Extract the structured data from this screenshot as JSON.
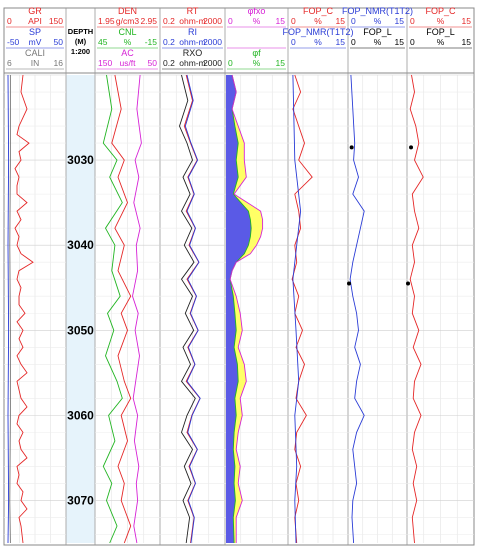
{
  "chart_data": {
    "type": "well-log",
    "depth": {
      "title": "DEPTH",
      "unit": "(M)",
      "scale": "1:200",
      "range": [
        3020,
        3075
      ],
      "ticks": [
        3030,
        3040,
        3050,
        3060,
        3070
      ]
    },
    "tracks": [
      {
        "id": "t1",
        "headers": [
          {
            "name": "GR",
            "left": "0",
            "unit": "API",
            "right": "150",
            "color": "#e52727"
          },
          {
            "name": "SP",
            "left": "-50",
            "unit": "mV",
            "right": "50",
            "color": "#2a3cd6"
          },
          {
            "name": "CALI",
            "left": "6",
            "unit": "IN",
            "right": "16",
            "color": "#777777"
          }
        ]
      },
      {
        "id": "t3",
        "headers": [
          {
            "name": "DEN",
            "left": "1.95",
            "unit": "g/cm3",
            "right": "2.95",
            "color": "#e52727"
          },
          {
            "name": "CNL",
            "left": "45",
            "unit": "%",
            "right": "-15",
            "color": "#22b522"
          },
          {
            "name": "AC",
            "left": "150",
            "unit": "us/ft",
            "right": "50",
            "color": "#d622d6"
          }
        ]
      },
      {
        "id": "t4",
        "headers": [
          {
            "name": "RT",
            "left": "0.2",
            "unit": "ohm-m",
            "right": "2000",
            "color": "#e52727"
          },
          {
            "name": "RI",
            "left": "0.2",
            "unit": "ohm-m",
            "right": "2000",
            "color": "#2a3cd6"
          },
          {
            "name": "RXO",
            "left": "0.2",
            "unit": "ohm-m",
            "right": "2000",
            "color": "#222222"
          }
        ]
      },
      {
        "id": "t5",
        "headers": [
          {
            "name": "φfxo",
            "left": "0",
            "unit": "%",
            "right": "15",
            "color": "#d622d6"
          },
          {
            "name": "",
            "left": "",
            "unit": "",
            "right": "",
            "color": "#d622d6"
          },
          {
            "name": "φf",
            "left": "0",
            "unit": "%",
            "right": "15",
            "color": "#22b522"
          }
        ]
      },
      {
        "id": "t6",
        "headers": [
          {
            "name": "FOP_C",
            "left": "0",
            "unit": "%",
            "right": "15",
            "color": "#e52727"
          },
          {
            "name": "FOP_NMR(T1T2)",
            "left": "0",
            "unit": "%",
            "right": "15",
            "color": "#2a3cd6"
          }
        ]
      },
      {
        "id": "t7",
        "headers": [
          {
            "name": "FOP_NMR(T1T2)",
            "left": "0",
            "unit": "%",
            "right": "15",
            "color": "#2a3cd6"
          },
          {
            "name": "FOP_L",
            "left": "0",
            "unit": "%",
            "right": "15",
            "color": "#000000"
          }
        ]
      },
      {
        "id": "t8",
        "headers": [
          {
            "name": "FOP_C",
            "left": "0",
            "unit": "%",
            "right": "15",
            "color": "#e52727"
          },
          {
            "name": "FOP_L",
            "left": "0",
            "unit": "%",
            "right": "15",
            "color": "#000000"
          }
        ]
      }
    ],
    "fill_colors": {
      "blue": "#5a5ae6",
      "yellow": "#ffff66"
    },
    "points": [
      {
        "track": "t7",
        "depth": 3028.5,
        "value": 0.7
      },
      {
        "track": "t8",
        "depth": 3028.5,
        "value": 0.7
      },
      {
        "track": "t7",
        "depth": 3044.5,
        "value": 0.0
      },
      {
        "track": "t8",
        "depth": 3044.5,
        "value": 0.0
      }
    ],
    "curves": [
      {
        "name": "GR",
        "track": "t1",
        "color": "#e52727",
        "scale": [
          0,
          150
        ],
        "depths": [
          3020,
          3022,
          3024,
          3026,
          3027,
          3028,
          3029,
          3030,
          3031,
          3032,
          3033,
          3034,
          3035,
          3036,
          3037,
          3038,
          3039,
          3040,
          3041,
          3042,
          3043,
          3044,
          3045,
          3046,
          3047,
          3048,
          3049,
          3050,
          3051,
          3052,
          3053,
          3054,
          3055,
          3056,
          3057,
          3058,
          3059,
          3060,
          3061,
          3062,
          3063,
          3064,
          3065,
          3066,
          3067,
          3068,
          3069,
          3070,
          3071,
          3072,
          3073,
          3075
        ],
        "values": [
          45,
          40,
          55,
          35,
          30,
          60,
          35,
          40,
          25,
          35,
          30,
          30,
          55,
          30,
          40,
          25,
          35,
          30,
          40,
          70,
          35,
          30,
          40,
          35,
          35,
          50,
          30,
          45,
          35,
          45,
          30,
          40,
          55,
          30,
          35,
          40,
          55,
          35,
          30,
          45,
          35,
          40,
          55,
          30,
          35,
          30,
          45,
          40,
          55,
          35,
          40,
          45
        ]
      },
      {
        "name": "SP",
        "track": "t1",
        "color": "#2a3cd6",
        "scale": [
          -50,
          50
        ],
        "depths": [
          3020,
          3030,
          3040,
          3050,
          3060,
          3070,
          3075
        ],
        "values": [
          -45,
          -44,
          -45,
          -44,
          -45,
          -44,
          -45
        ]
      },
      {
        "name": "CALI",
        "track": "t1",
        "color": "#777777",
        "scale": [
          6,
          16
        ],
        "depths": [
          3020,
          3030,
          3040,
          3050,
          3060,
          3070,
          3075
        ],
        "values": [
          6.9,
          6.9,
          6.8,
          6.9,
          6.9,
          6.8,
          6.9
        ]
      },
      {
        "name": "DEN",
        "track": "t3",
        "color": "#e52727",
        "scale": [
          1.95,
          2.95
        ],
        "depths": [
          3020,
          3024,
          3028,
          3030,
          3032,
          3035,
          3038,
          3040,
          3043,
          3046,
          3048,
          3050,
          3053,
          3056,
          3058,
          3060,
          3063,
          3066,
          3068,
          3070,
          3073,
          3075
        ],
        "values": [
          2.25,
          2.35,
          2.2,
          2.4,
          2.3,
          2.45,
          2.25,
          2.4,
          2.3,
          2.5,
          2.35,
          2.45,
          2.3,
          2.4,
          2.5,
          2.35,
          2.45,
          2.3,
          2.4,
          2.35,
          2.5,
          2.4
        ]
      },
      {
        "name": "CNL",
        "track": "t3",
        "color": "#22b522",
        "scale": [
          45,
          -15
        ],
        "depths": [
          3020,
          3024,
          3028,
          3030,
          3032,
          3035,
          3038,
          3040,
          3043,
          3046,
          3048,
          3050,
          3053,
          3056,
          3058,
          3060,
          3063,
          3066,
          3068,
          3070,
          3073,
          3075
        ],
        "values": [
          35,
          30,
          38,
          25,
          32,
          20,
          36,
          27,
          30,
          22,
          34,
          28,
          36,
          25,
          20,
          33,
          27,
          38,
          30,
          35,
          25,
          32
        ]
      },
      {
        "name": "AC",
        "track": "t3",
        "color": "#d622d6",
        "scale": [
          150,
          50
        ],
        "depths": [
          3020,
          3024,
          3028,
          3030,
          3032,
          3035,
          3038,
          3040,
          3043,
          3046,
          3048,
          3050,
          3053,
          3056,
          3058,
          3060,
          3063,
          3066,
          3068,
          3070,
          3073,
          3075
        ],
        "values": [
          80,
          85,
          78,
          88,
          82,
          90,
          80,
          86,
          84,
          92,
          83,
          88,
          81,
          87,
          91,
          84,
          89,
          82,
          86,
          84,
          90,
          85
        ]
      },
      {
        "name": "RT",
        "track": "t4",
        "color": "#e52727",
        "scale": [
          0.2,
          2000
        ],
        "log": true,
        "depths": [
          3020,
          3023,
          3026,
          3028,
          3030,
          3032,
          3034,
          3036,
          3038,
          3040,
          3042,
          3044,
          3046,
          3048,
          3050,
          3052,
          3054,
          3056,
          3058,
          3060,
          3062,
          3064,
          3066,
          3068,
          3070,
          3072,
          3075
        ],
        "values": [
          8,
          20,
          6,
          15,
          40,
          10,
          25,
          8,
          30,
          12,
          50,
          9,
          35,
          14,
          45,
          10,
          28,
          8,
          60,
          18,
          9,
          40,
          12,
          30,
          10,
          25,
          15
        ]
      },
      {
        "name": "RI",
        "track": "t4",
        "color": "#2a3cd6",
        "scale": [
          0.2,
          2000
        ],
        "log": true,
        "depths": [
          3020,
          3023,
          3026,
          3028,
          3030,
          3032,
          3034,
          3036,
          3038,
          3040,
          3042,
          3044,
          3046,
          3048,
          3050,
          3052,
          3054,
          3056,
          3058,
          3060,
          3062,
          3064,
          3066,
          3068,
          3070,
          3072,
          3075
        ],
        "values": [
          9,
          22,
          7,
          16,
          42,
          11,
          26,
          9,
          31,
          13,
          52,
          10,
          36,
          15,
          46,
          11,
          29,
          9,
          62,
          19,
          10,
          41,
          13,
          31,
          11,
          26,
          16
        ]
      },
      {
        "name": "RXO",
        "track": "t4",
        "color": "#222222",
        "scale": [
          0.2,
          2000
        ],
        "log": true,
        "depths": [
          3020,
          3023,
          3026,
          3028,
          3030,
          3032,
          3034,
          3036,
          3038,
          3040,
          3042,
          3044,
          3046,
          3048,
          3050,
          3052,
          3054,
          3056,
          3058,
          3060,
          3062,
          3064,
          3066,
          3068,
          3070,
          3072,
          3075
        ],
        "values": [
          4,
          10,
          3,
          9,
          20,
          5,
          14,
          4,
          18,
          6,
          25,
          4,
          20,
          7,
          24,
          5,
          15,
          4,
          30,
          9,
          4,
          20,
          6,
          16,
          5,
          13,
          8
        ]
      },
      {
        "name": "φf",
        "track": "t5",
        "color": "#22b522",
        "scale": [
          0,
          15
        ],
        "fill": "#5a5ae6",
        "depths": [
          3020,
          3022,
          3024,
          3026,
          3028,
          3030,
          3032,
          3034,
          3036,
          3037,
          3038,
          3039,
          3040,
          3041,
          3042,
          3043,
          3044,
          3046,
          3048,
          3050,
          3052,
          3054,
          3056,
          3058,
          3060,
          3062,
          3064,
          3066,
          3068,
          3070,
          3072,
          3075
        ],
        "values": [
          1.5,
          2.5,
          1.5,
          2.2,
          3.0,
          2.5,
          3.0,
          1.8,
          5.5,
          6.0,
          6.2,
          6.0,
          5.5,
          4.5,
          2.5,
          1.5,
          1.0,
          1.8,
          2.2,
          2.5,
          2.0,
          2.8,
          3.0,
          2.2,
          2.5,
          2.0,
          1.8,
          2.2,
          2.0,
          2.3,
          1.8,
          2.0
        ]
      },
      {
        "name": "φfxo",
        "track": "t5",
        "color": "#d622d6",
        "scale": [
          0,
          15
        ],
        "fill": "#ffff66",
        "depths": [
          3020,
          3022,
          3024,
          3026,
          3028,
          3030,
          3032,
          3034,
          3036,
          3037,
          3038,
          3039,
          3040,
          3041,
          3042,
          3043,
          3044,
          3046,
          3048,
          3050,
          3052,
          3054,
          3056,
          3058,
          3060,
          3062,
          3064,
          3066,
          3068,
          3070,
          3072,
          3075
        ],
        "values": [
          1.5,
          2.5,
          1.5,
          3.0,
          4.5,
          4.5,
          5.0,
          2.0,
          8.5,
          9.0,
          9.0,
          8.5,
          7.5,
          6.0,
          2.5,
          1.5,
          1.0,
          2.5,
          3.5,
          4.0,
          3.0,
          4.5,
          5.0,
          3.5,
          4.0,
          3.0,
          2.5,
          3.5,
          3.0,
          4.0,
          2.5,
          2.5
        ]
      },
      {
        "name": "FOP_C",
        "track": "t6",
        "color": "#e52727",
        "scale": [
          0,
          15
        ],
        "depths": [
          3020,
          3022,
          3024,
          3026,
          3028,
          3030,
          3032,
          3034,
          3036,
          3038,
          3040,
          3042,
          3044,
          3046,
          3048,
          3050,
          3052,
          3054,
          3056,
          3058,
          3060,
          3062,
          3064,
          3066,
          3068,
          3070,
          3072,
          3075
        ],
        "values": [
          1.5,
          3.0,
          1.0,
          2.5,
          4.0,
          2.5,
          6.0,
          1.5,
          2.5,
          3.0,
          1.5,
          2.0,
          0.8,
          2.5,
          1.5,
          3.5,
          1.8,
          4.0,
          2.5,
          1.8,
          4.5,
          2.0,
          1.5,
          3.0,
          1.8,
          2.5,
          1.5,
          2.0
        ]
      },
      {
        "name": "FOP_NMR(T1T2)",
        "track": "t6",
        "color": "#2a3cd6",
        "scale": [
          0,
          15
        ],
        "depths": [
          3020,
          3030,
          3036,
          3040,
          3044,
          3050,
          3056,
          3060,
          3066,
          3070,
          3075
        ],
        "values": [
          1.0,
          1.5,
          3.0,
          2.0,
          1.0,
          1.8,
          2.5,
          1.5,
          2.0,
          1.5,
          1.8
        ]
      },
      {
        "name": "FOP_NMR(T1T2)",
        "track": "t7",
        "color": "#2a3cd6",
        "scale": [
          0,
          15
        ],
        "depths": [
          3020,
          3024,
          3028,
          3030,
          3032,
          3034,
          3036,
          3038,
          3040,
          3042,
          3044,
          3046,
          3048,
          3050,
          3052,
          3054,
          3056,
          3058,
          3060,
          3062,
          3064,
          3066,
          3068,
          3070,
          3072,
          3075
        ],
        "values": [
          0.5,
          1.0,
          1.5,
          1.2,
          2.5,
          1.0,
          4.0,
          3.0,
          2.0,
          1.0,
          0.3,
          1.0,
          2.0,
          2.5,
          1.5,
          3.0,
          2.0,
          1.5,
          4.0,
          2.0,
          1.0,
          1.5,
          2.0,
          1.0,
          0.8,
          1.2
        ]
      },
      {
        "name": "FOP_C",
        "track": "t8",
        "color": "#e52727",
        "scale": [
          0,
          15
        ],
        "depths": [
          3020,
          3022,
          3024,
          3026,
          3028,
          3030,
          3032,
          3034,
          3036,
          3038,
          3040,
          3042,
          3044,
          3046,
          3048,
          3050,
          3052,
          3054,
          3056,
          3058,
          3060,
          3062,
          3064,
          3066,
          3068,
          3070,
          3072,
          3075
        ],
        "values": [
          0.8,
          1.5,
          0.5,
          1.8,
          2.5,
          1.5,
          3.5,
          1.0,
          1.5,
          2.5,
          1.0,
          1.5,
          0.5,
          1.5,
          1.0,
          2.5,
          1.2,
          3.0,
          1.5,
          1.2,
          3.0,
          1.5,
          1.0,
          2.0,
          1.2,
          2.0,
          1.0,
          1.5
        ]
      }
    ]
  }
}
